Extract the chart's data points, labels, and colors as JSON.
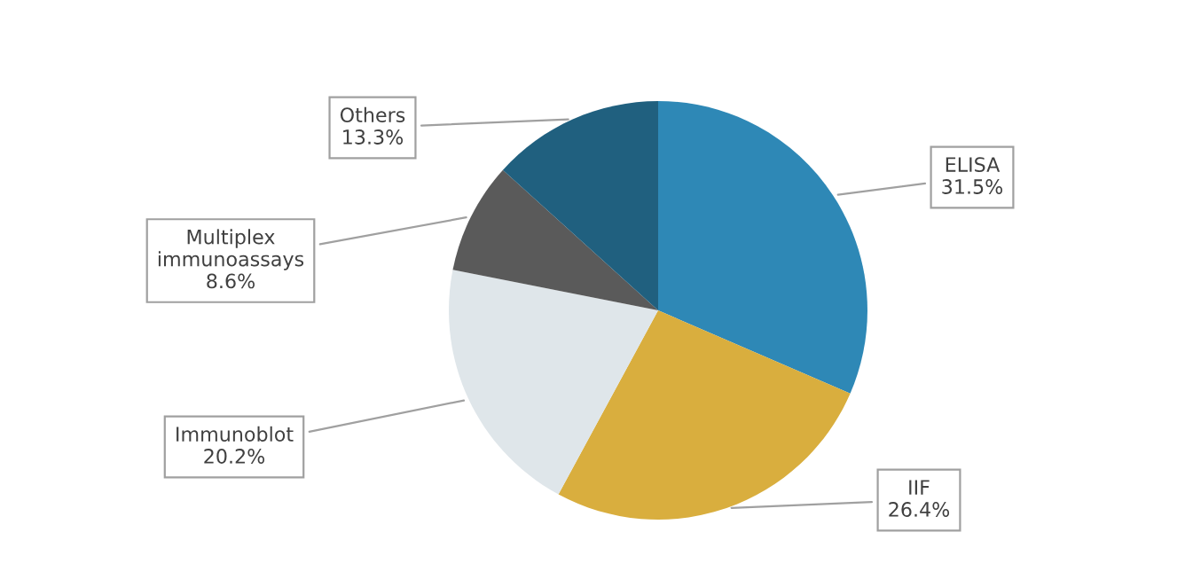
{
  "chart_data": {
    "type": "pie",
    "categories": [
      "ELISA",
      "IIF",
      "Immunoblot",
      "Multiplex\nimmunoassays",
      "Others"
    ],
    "values": [
      31.5,
      26.4,
      20.2,
      8.6,
      13.3
    ],
    "colors": [
      "#2e88b6",
      "#d9ae3e",
      "#dfe6ea",
      "#5a5a5a",
      "#20607f"
    ],
    "value_labels": [
      "31.5%",
      "26.4%",
      "20.2%",
      "8.6%",
      "13.3%"
    ]
  }
}
